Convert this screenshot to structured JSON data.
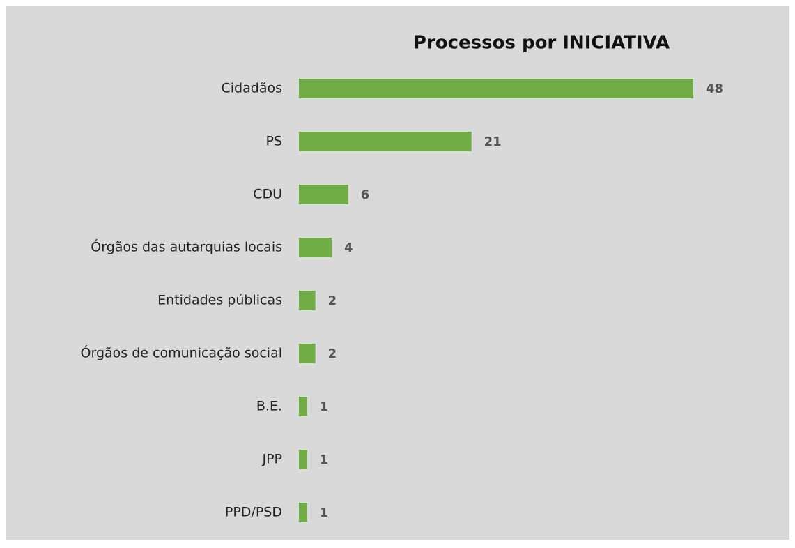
{
  "chart_data": {
    "type": "bar",
    "orientation": "horizontal",
    "title": "Processos por INICIATIVA",
    "categories": [
      "Cidadãos",
      "PS",
      "CDU",
      "Órgãos das autarquias locais",
      "Entidades públicas",
      "Órgãos de comunicação social",
      "B.E.",
      "JPP",
      "PPD/PSD"
    ],
    "values": [
      48,
      21,
      6,
      4,
      2,
      2,
      1,
      1,
      1
    ],
    "color": "#70ad47"
  }
}
